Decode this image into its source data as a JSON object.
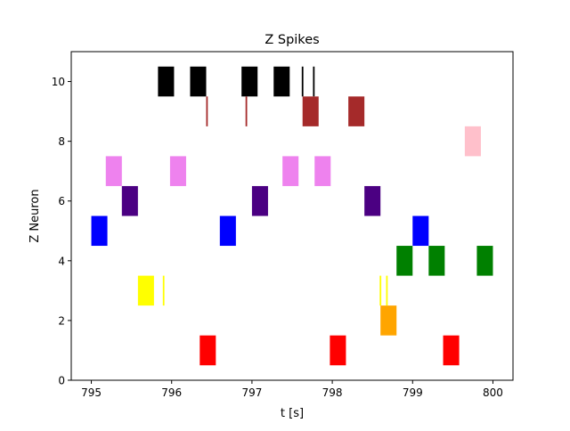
{
  "chart_data": {
    "type": "scatter",
    "title": "Z Spikes",
    "xlabel": "t [s]",
    "ylabel": "Z Neuron",
    "xlim": [
      794.75,
      800.25
    ],
    "ylim": [
      0,
      11
    ],
    "x_ticks": [
      795,
      796,
      797,
      798,
      799,
      800
    ],
    "x_tick_labels": [
      "795",
      "796",
      "797",
      "798",
      "799",
      "800"
    ],
    "y_ticks": [
      0,
      2,
      4,
      6,
      8,
      10
    ],
    "y_tick_labels": [
      "0",
      "2",
      "4",
      "6",
      "8",
      "10"
    ],
    "grid": false,
    "series": [
      {
        "color": "#000000",
        "spikes": [
          {
            "y": 10,
            "x0": 795.83,
            "x1": 796.03,
            "h": 1.0
          },
          {
            "y": 10,
            "x0": 796.23,
            "x1": 796.43,
            "h": 1.0
          },
          {
            "y": 10,
            "x0": 796.87,
            "x1": 797.07,
            "h": 1.0
          },
          {
            "y": 10,
            "x0": 797.27,
            "x1": 797.47,
            "h": 1.0
          },
          {
            "y": 10,
            "x0": 797.62,
            "x1": 797.64,
            "h": 1.0
          },
          {
            "y": 10,
            "x0": 797.76,
            "x1": 797.78,
            "h": 1.0
          }
        ]
      },
      {
        "color": "#a52a2a",
        "spikes": [
          {
            "y": 9,
            "x0": 796.43,
            "x1": 796.45,
            "h": 1.0
          },
          {
            "y": 9,
            "x0": 796.92,
            "x1": 796.94,
            "h": 1.0
          },
          {
            "y": 9,
            "x0": 797.63,
            "x1": 797.83,
            "h": 1.0
          },
          {
            "y": 9,
            "x0": 798.2,
            "x1": 798.4,
            "h": 1.0
          }
        ]
      },
      {
        "color": "#ffc0cb",
        "spikes": [
          {
            "y": 8,
            "x0": 799.65,
            "x1": 799.85,
            "h": 1.0
          }
        ]
      },
      {
        "color": "#ee82ee",
        "spikes": [
          {
            "y": 7,
            "x0": 795.18,
            "x1": 795.38,
            "h": 1.0
          },
          {
            "y": 7,
            "x0": 795.98,
            "x1": 796.18,
            "h": 1.0
          },
          {
            "y": 7,
            "x0": 797.38,
            "x1": 797.58,
            "h": 1.0
          },
          {
            "y": 7,
            "x0": 797.78,
            "x1": 797.98,
            "h": 1.0
          }
        ]
      },
      {
        "color": "#4b0082",
        "spikes": [
          {
            "y": 6,
            "x0": 795.38,
            "x1": 795.58,
            "h": 1.0
          },
          {
            "y": 6,
            "x0": 797.0,
            "x1": 797.2,
            "h": 1.0
          },
          {
            "y": 6,
            "x0": 798.4,
            "x1": 798.6,
            "h": 1.0
          }
        ]
      },
      {
        "color": "#0000ff",
        "spikes": [
          {
            "y": 5,
            "x0": 795.0,
            "x1": 795.2,
            "h": 1.0
          },
          {
            "y": 5,
            "x0": 796.6,
            "x1": 796.8,
            "h": 1.0
          },
          {
            "y": 5,
            "x0": 799.0,
            "x1": 799.2,
            "h": 1.0
          }
        ]
      },
      {
        "color": "#008000",
        "spikes": [
          {
            "y": 4,
            "x0": 798.8,
            "x1": 799.0,
            "h": 1.0
          },
          {
            "y": 4,
            "x0": 799.2,
            "x1": 799.4,
            "h": 1.0
          },
          {
            "y": 4,
            "x0": 799.8,
            "x1": 800.0,
            "h": 1.0
          }
        ]
      },
      {
        "color": "#ffff00",
        "spikes": [
          {
            "y": 3,
            "x0": 795.58,
            "x1": 795.78,
            "h": 1.0
          },
          {
            "y": 3,
            "x0": 795.89,
            "x1": 795.91,
            "h": 1.0
          },
          {
            "y": 3,
            "x0": 798.59,
            "x1": 798.61,
            "h": 1.0
          },
          {
            "y": 3,
            "x0": 798.67,
            "x1": 798.69,
            "h": 1.0
          }
        ]
      },
      {
        "color": "#ffa500",
        "spikes": [
          {
            "y": 2,
            "x0": 798.6,
            "x1": 798.8,
            "h": 1.0
          }
        ]
      },
      {
        "color": "#ff0000",
        "spikes": [
          {
            "y": 1,
            "x0": 796.35,
            "x1": 796.55,
            "h": 1.0
          },
          {
            "y": 1,
            "x0": 797.97,
            "x1": 798.17,
            "h": 1.0
          },
          {
            "y": 1,
            "x0": 799.38,
            "x1": 799.58,
            "h": 1.0
          }
        ]
      }
    ]
  }
}
